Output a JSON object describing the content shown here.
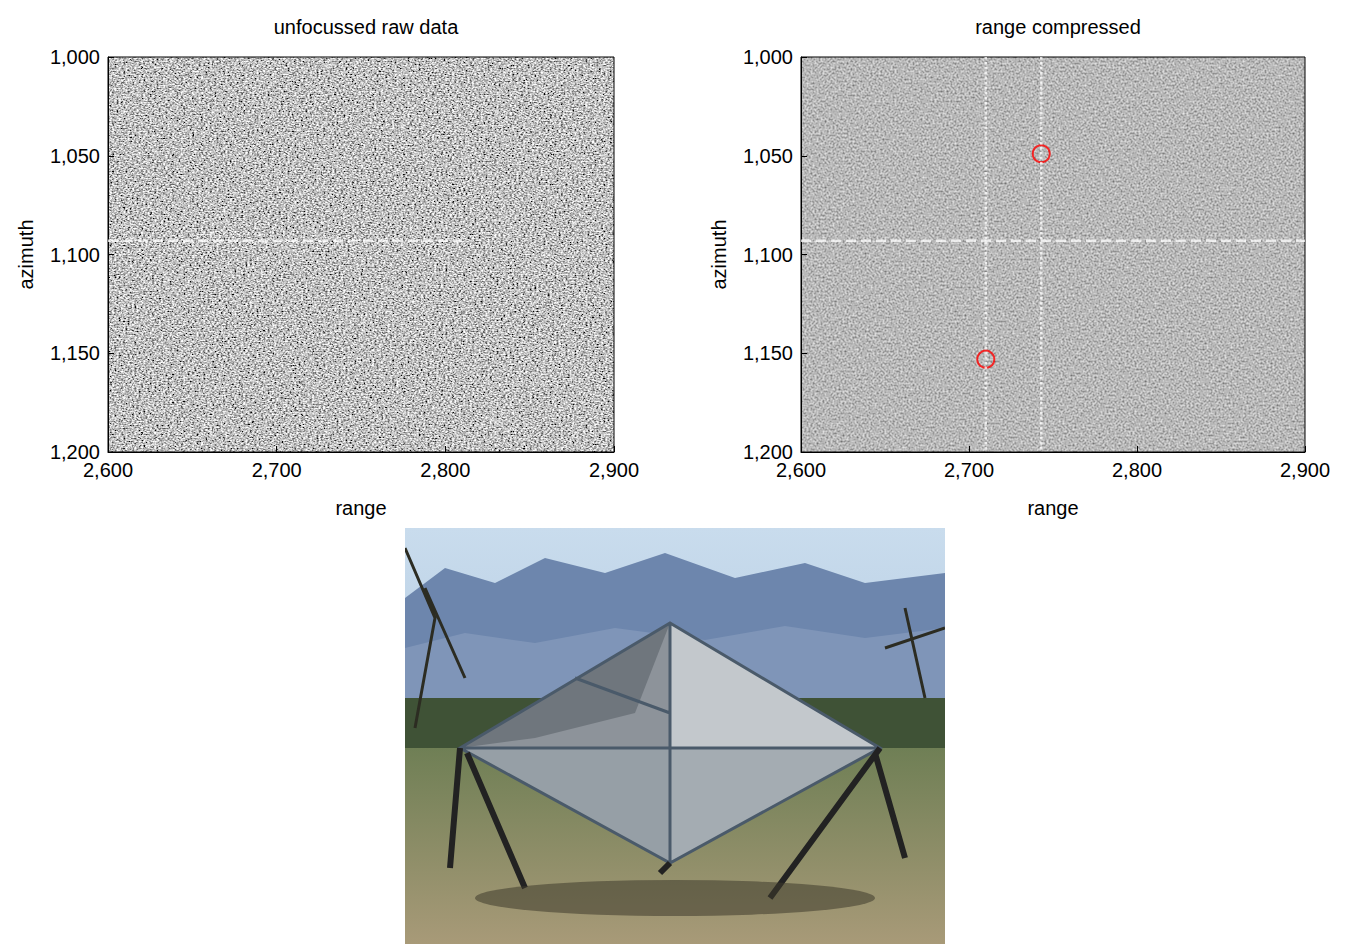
{
  "chart_data": [
    {
      "type": "image",
      "title": "unfocussed raw data",
      "xlabel": "range",
      "ylabel": "azimuth",
      "xlim": [
        2600,
        2900
      ],
      "xticks": [
        2600,
        2700,
        2800,
        2900
      ],
      "ylim": [
        1200,
        1000
      ],
      "yticks": [
        1000,
        1050,
        1100,
        1150,
        1200
      ],
      "series": [
        {
          "type": "line",
          "color": "#ffffff",
          "line_style": "dashed",
          "x": [
            2600,
            2810
          ],
          "y": [
            1093,
            1093
          ]
        }
      ]
    },
    {
      "type": "image",
      "title": "range compressed",
      "xlabel": "range",
      "ylabel": "azimuth",
      "xlim": [
        2600,
        2900
      ],
      "xticks": [
        2600,
        2700,
        2800,
        2900
      ],
      "ylim": [
        1200,
        1000
      ],
      "yticks": [
        1000,
        1050,
        1100,
        1150,
        1200
      ],
      "series": [
        {
          "type": "line",
          "color": "#ffffff",
          "line_style": "dashed",
          "x": [
            2600,
            2900
          ],
          "y": [
            1093,
            1093
          ]
        },
        {
          "type": "line",
          "color": "#ffffff",
          "line_style": "dotted",
          "x": [
            2710,
            2710
          ],
          "y": [
            1000,
            1200
          ]
        },
        {
          "type": "line",
          "color": "#ffffff",
          "line_style": "dotted",
          "x": [
            2743,
            2743
          ],
          "y": [
            1000,
            1200
          ]
        },
        {
          "type": "scatter",
          "marker": "open_circle",
          "color": "#ff0000",
          "x": [
            2743,
            2710
          ],
          "y": [
            1049,
            1153
          ]
        }
      ]
    }
  ]
}
